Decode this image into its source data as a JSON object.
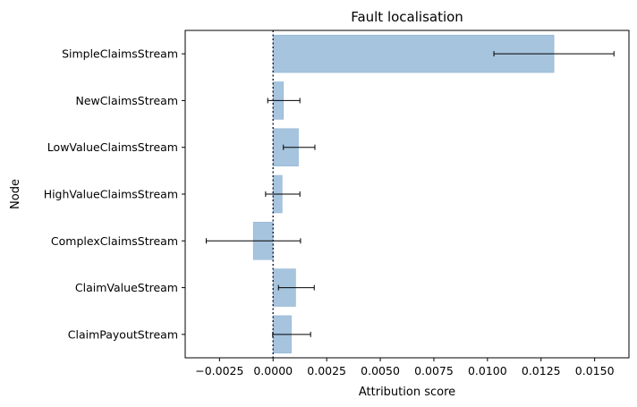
{
  "chart_data": {
    "type": "bar",
    "orientation": "horizontal",
    "title": "Fault localisation",
    "xlabel": "Attribution score",
    "ylabel": "Node",
    "xlim": [
      -0.0041,
      0.0166
    ],
    "xticks": [
      -0.0025,
      0.0,
      0.0025,
      0.005,
      0.0075,
      0.01,
      0.0125,
      0.015
    ],
    "xtick_labels": [
      "−0.0025",
      "0.0000",
      "0.0025",
      "0.0050",
      "0.0075",
      "0.0100",
      "0.0125",
      "0.0150"
    ],
    "categories": [
      "SimpleClaimsStream",
      "NewClaimsStream",
      "LowValueClaimsStream",
      "HighValueClaimsStream",
      "ComplexClaimsStream",
      "ClaimValueStream",
      "ClaimPayoutStream"
    ],
    "values": [
      0.0131,
      0.00048,
      0.00118,
      0.00042,
      -0.00092,
      0.00105,
      0.00085
    ],
    "error_low": [
      0.0103,
      -0.00025,
      0.00048,
      -0.00035,
      -0.00312,
      0.00025,
      -2e-05
    ],
    "error_high": [
      0.0159,
      0.00125,
      0.00195,
      0.00125,
      0.00128,
      0.00192,
      0.00175
    ],
    "reference_line": 0.0,
    "grid": false,
    "colors": {
      "bar_fill": "#a6c4de",
      "bar_edge": "#8fb3d3",
      "error_bar": "#000000",
      "axis": "#000000"
    }
  }
}
